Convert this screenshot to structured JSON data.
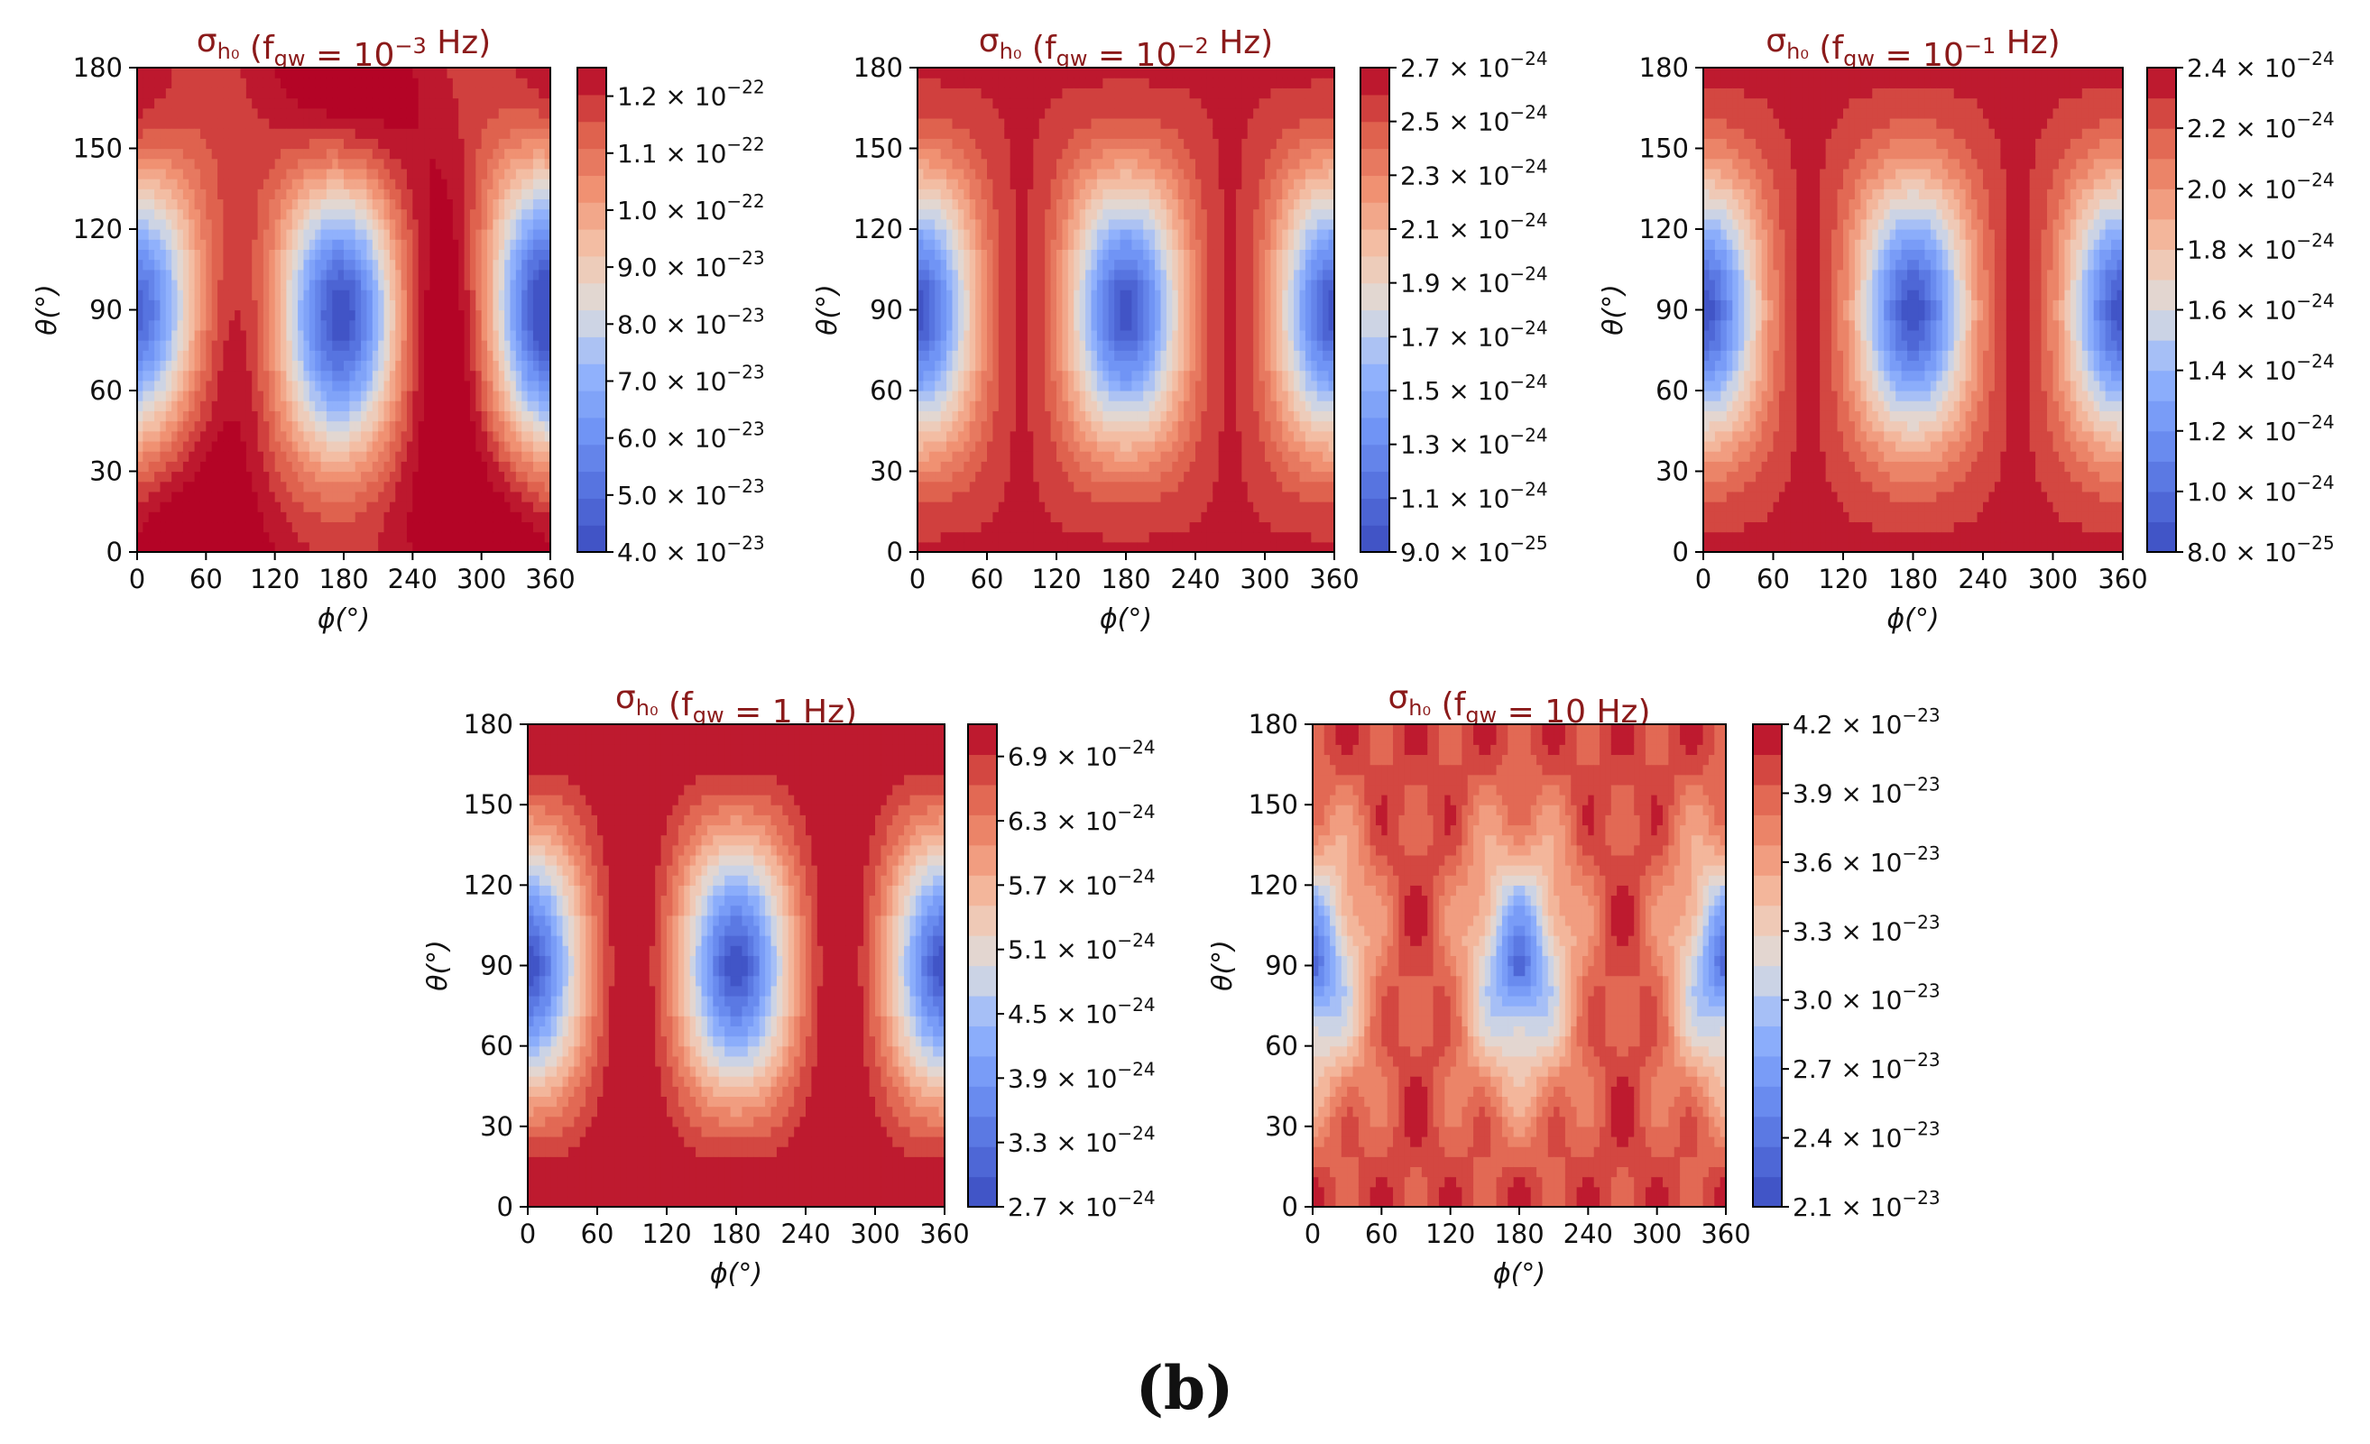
{
  "figure_label": "(b)",
  "chart_data": [
    {
      "type": "heatmap",
      "title_prefix": "σ",
      "title_sub": "h₀",
      "title_mid": " (f",
      "title_sub2": "gw",
      "title_eq": " = 10",
      "title_exp": "−3",
      "title_unit": " Hz)",
      "xlabel": "ϕ(°)",
      "ylabel": "θ(°)",
      "xlim": [
        0,
        360
      ],
      "ylim": [
        0,
        180
      ],
      "xticks": [
        "0",
        "60",
        "120",
        "180",
        "240",
        "300",
        "360"
      ],
      "yticks": [
        "0",
        "30",
        "60",
        "90",
        "120",
        "150",
        "180"
      ],
      "colorbar_ticks": [
        {
          "mant": "4.0",
          "exp": "−23",
          "frac": 0.0
        },
        {
          "mant": "5.0",
          "exp": "−23",
          "frac": 0.1176
        },
        {
          "mant": "6.0",
          "exp": "−23",
          "frac": 0.2353
        },
        {
          "mant": "7.0",
          "exp": "−23",
          "frac": 0.3529
        },
        {
          "mant": "8.0",
          "exp": "−23",
          "frac": 0.4706
        },
        {
          "mant": "9.0",
          "exp": "−23",
          "frac": 0.5882
        },
        {
          "mant": "1.0",
          "exp": "−22",
          "frac": 0.7059
        },
        {
          "mant": "1.1",
          "exp": "−22",
          "frac": 0.8235
        },
        {
          "mant": "1.2",
          "exp": "−22",
          "frac": 0.9412
        }
      ],
      "min_value": "4.0e-23",
      "max_value": "1.25e-22",
      "pattern": "lowf",
      "levels": 18
    },
    {
      "type": "heatmap",
      "title_prefix": "σ",
      "title_sub": "h₀",
      "title_mid": " (f",
      "title_sub2": "gw",
      "title_eq": " = 10",
      "title_exp": "−2",
      "title_unit": " Hz)",
      "xlabel": "ϕ(°)",
      "ylabel": "θ(°)",
      "xlim": [
        0,
        360
      ],
      "ylim": [
        0,
        180
      ],
      "xticks": [
        "0",
        "60",
        "120",
        "180",
        "240",
        "300",
        "360"
      ],
      "yticks": [
        "0",
        "30",
        "60",
        "90",
        "120",
        "150",
        "180"
      ],
      "colorbar_ticks": [
        {
          "mant": "9.0",
          "exp": "−25",
          "frac": 0.0
        },
        {
          "mant": "1.1",
          "exp": "−24",
          "frac": 0.1111
        },
        {
          "mant": "1.3",
          "exp": "−24",
          "frac": 0.2222
        },
        {
          "mant": "1.5",
          "exp": "−24",
          "frac": 0.3333
        },
        {
          "mant": "1.7",
          "exp": "−24",
          "frac": 0.4444
        },
        {
          "mant": "1.9",
          "exp": "−24",
          "frac": 0.5556
        },
        {
          "mant": "2.1",
          "exp": "−24",
          "frac": 0.6667
        },
        {
          "mant": "2.3",
          "exp": "−24",
          "frac": 0.7778
        },
        {
          "mant": "2.5",
          "exp": "−24",
          "frac": 0.8889
        },
        {
          "mant": "2.7",
          "exp": "−24",
          "frac": 1.0
        }
      ],
      "min_value": "9.0e-25",
      "max_value": "2.7e-24",
      "pattern": "mid",
      "levels": 18
    },
    {
      "type": "heatmap",
      "title_prefix": "σ",
      "title_sub": "h₀",
      "title_mid": " (f",
      "title_sub2": "gw",
      "title_eq": " = 10",
      "title_exp": "−1",
      "title_unit": " Hz)",
      "xlabel": "ϕ(°)",
      "ylabel": "θ(°)",
      "xlim": [
        0,
        360
      ],
      "ylim": [
        0,
        180
      ],
      "xticks": [
        "0",
        "60",
        "120",
        "180",
        "240",
        "300",
        "360"
      ],
      "yticks": [
        "0",
        "30",
        "60",
        "90",
        "120",
        "150",
        "180"
      ],
      "colorbar_ticks": [
        {
          "mant": "8.0",
          "exp": "−25",
          "frac": 0.0
        },
        {
          "mant": "1.0",
          "exp": "−24",
          "frac": 0.125
        },
        {
          "mant": "1.2",
          "exp": "−24",
          "frac": 0.25
        },
        {
          "mant": "1.4",
          "exp": "−24",
          "frac": 0.375
        },
        {
          "mant": "1.6",
          "exp": "−24",
          "frac": 0.5
        },
        {
          "mant": "1.8",
          "exp": "−24",
          "frac": 0.625
        },
        {
          "mant": "2.0",
          "exp": "−24",
          "frac": 0.75
        },
        {
          "mant": "2.2",
          "exp": "−24",
          "frac": 0.875
        },
        {
          "mant": "2.4",
          "exp": "−24",
          "frac": 1.0
        }
      ],
      "min_value": "8.0e-25",
      "max_value": "2.4e-24",
      "pattern": "mid",
      "levels": 16
    },
    {
      "type": "heatmap",
      "title_prefix": "σ",
      "title_sub": "h₀",
      "title_mid": " (f",
      "title_sub2": "gw",
      "title_eq": " = 1",
      "title_exp": "",
      "title_unit": " Hz)",
      "xlabel": "ϕ(°)",
      "ylabel": "θ(°)",
      "xlim": [
        0,
        360
      ],
      "ylim": [
        0,
        180
      ],
      "xticks": [
        "0",
        "60",
        "120",
        "180",
        "240",
        "300",
        "360"
      ],
      "yticks": [
        "0",
        "30",
        "60",
        "90",
        "120",
        "150",
        "180"
      ],
      "colorbar_ticks": [
        {
          "mant": "2.7",
          "exp": "−24",
          "frac": 0.0
        },
        {
          "mant": "3.3",
          "exp": "−24",
          "frac": 0.1333
        },
        {
          "mant": "3.9",
          "exp": "−24",
          "frac": 0.2667
        },
        {
          "mant": "4.5",
          "exp": "−24",
          "frac": 0.4
        },
        {
          "mant": "5.1",
          "exp": "−24",
          "frac": 0.5333
        },
        {
          "mant": "5.7",
          "exp": "−24",
          "frac": 0.6667
        },
        {
          "mant": "6.3",
          "exp": "−24",
          "frac": 0.8
        },
        {
          "mant": "6.9",
          "exp": "−24",
          "frac": 0.9333
        }
      ],
      "min_value": "2.7e-24",
      "max_value": "7.2e-24",
      "pattern": "onehz",
      "levels": 16
    },
    {
      "type": "heatmap",
      "title_prefix": "σ",
      "title_sub": "h₀",
      "title_mid": " (f",
      "title_sub2": "gw",
      "title_eq": " = 10",
      "title_exp": "",
      "title_unit": " Hz)",
      "xlabel": "ϕ(°)",
      "ylabel": "θ(°)",
      "xlim": [
        0,
        360
      ],
      "ylim": [
        0,
        180
      ],
      "xticks": [
        "0",
        "60",
        "120",
        "180",
        "240",
        "300",
        "360"
      ],
      "yticks": [
        "0",
        "30",
        "60",
        "90",
        "120",
        "150",
        "180"
      ],
      "colorbar_ticks": [
        {
          "mant": "2.1",
          "exp": "−23",
          "frac": 0.0
        },
        {
          "mant": "2.4",
          "exp": "−23",
          "frac": 0.1429
        },
        {
          "mant": "2.7",
          "exp": "−23",
          "frac": 0.2857
        },
        {
          "mant": "3.0",
          "exp": "−23",
          "frac": 0.4286
        },
        {
          "mant": "3.3",
          "exp": "−23",
          "frac": 0.5714
        },
        {
          "mant": "3.6",
          "exp": "−23",
          "frac": 0.7143
        },
        {
          "mant": "3.9",
          "exp": "−23",
          "frac": 0.8571
        },
        {
          "mant": "4.2",
          "exp": "−23",
          "frac": 1.0
        }
      ],
      "min_value": "2.1e-23",
      "max_value": "4.2e-23",
      "pattern": "highf",
      "levels": 16
    }
  ]
}
